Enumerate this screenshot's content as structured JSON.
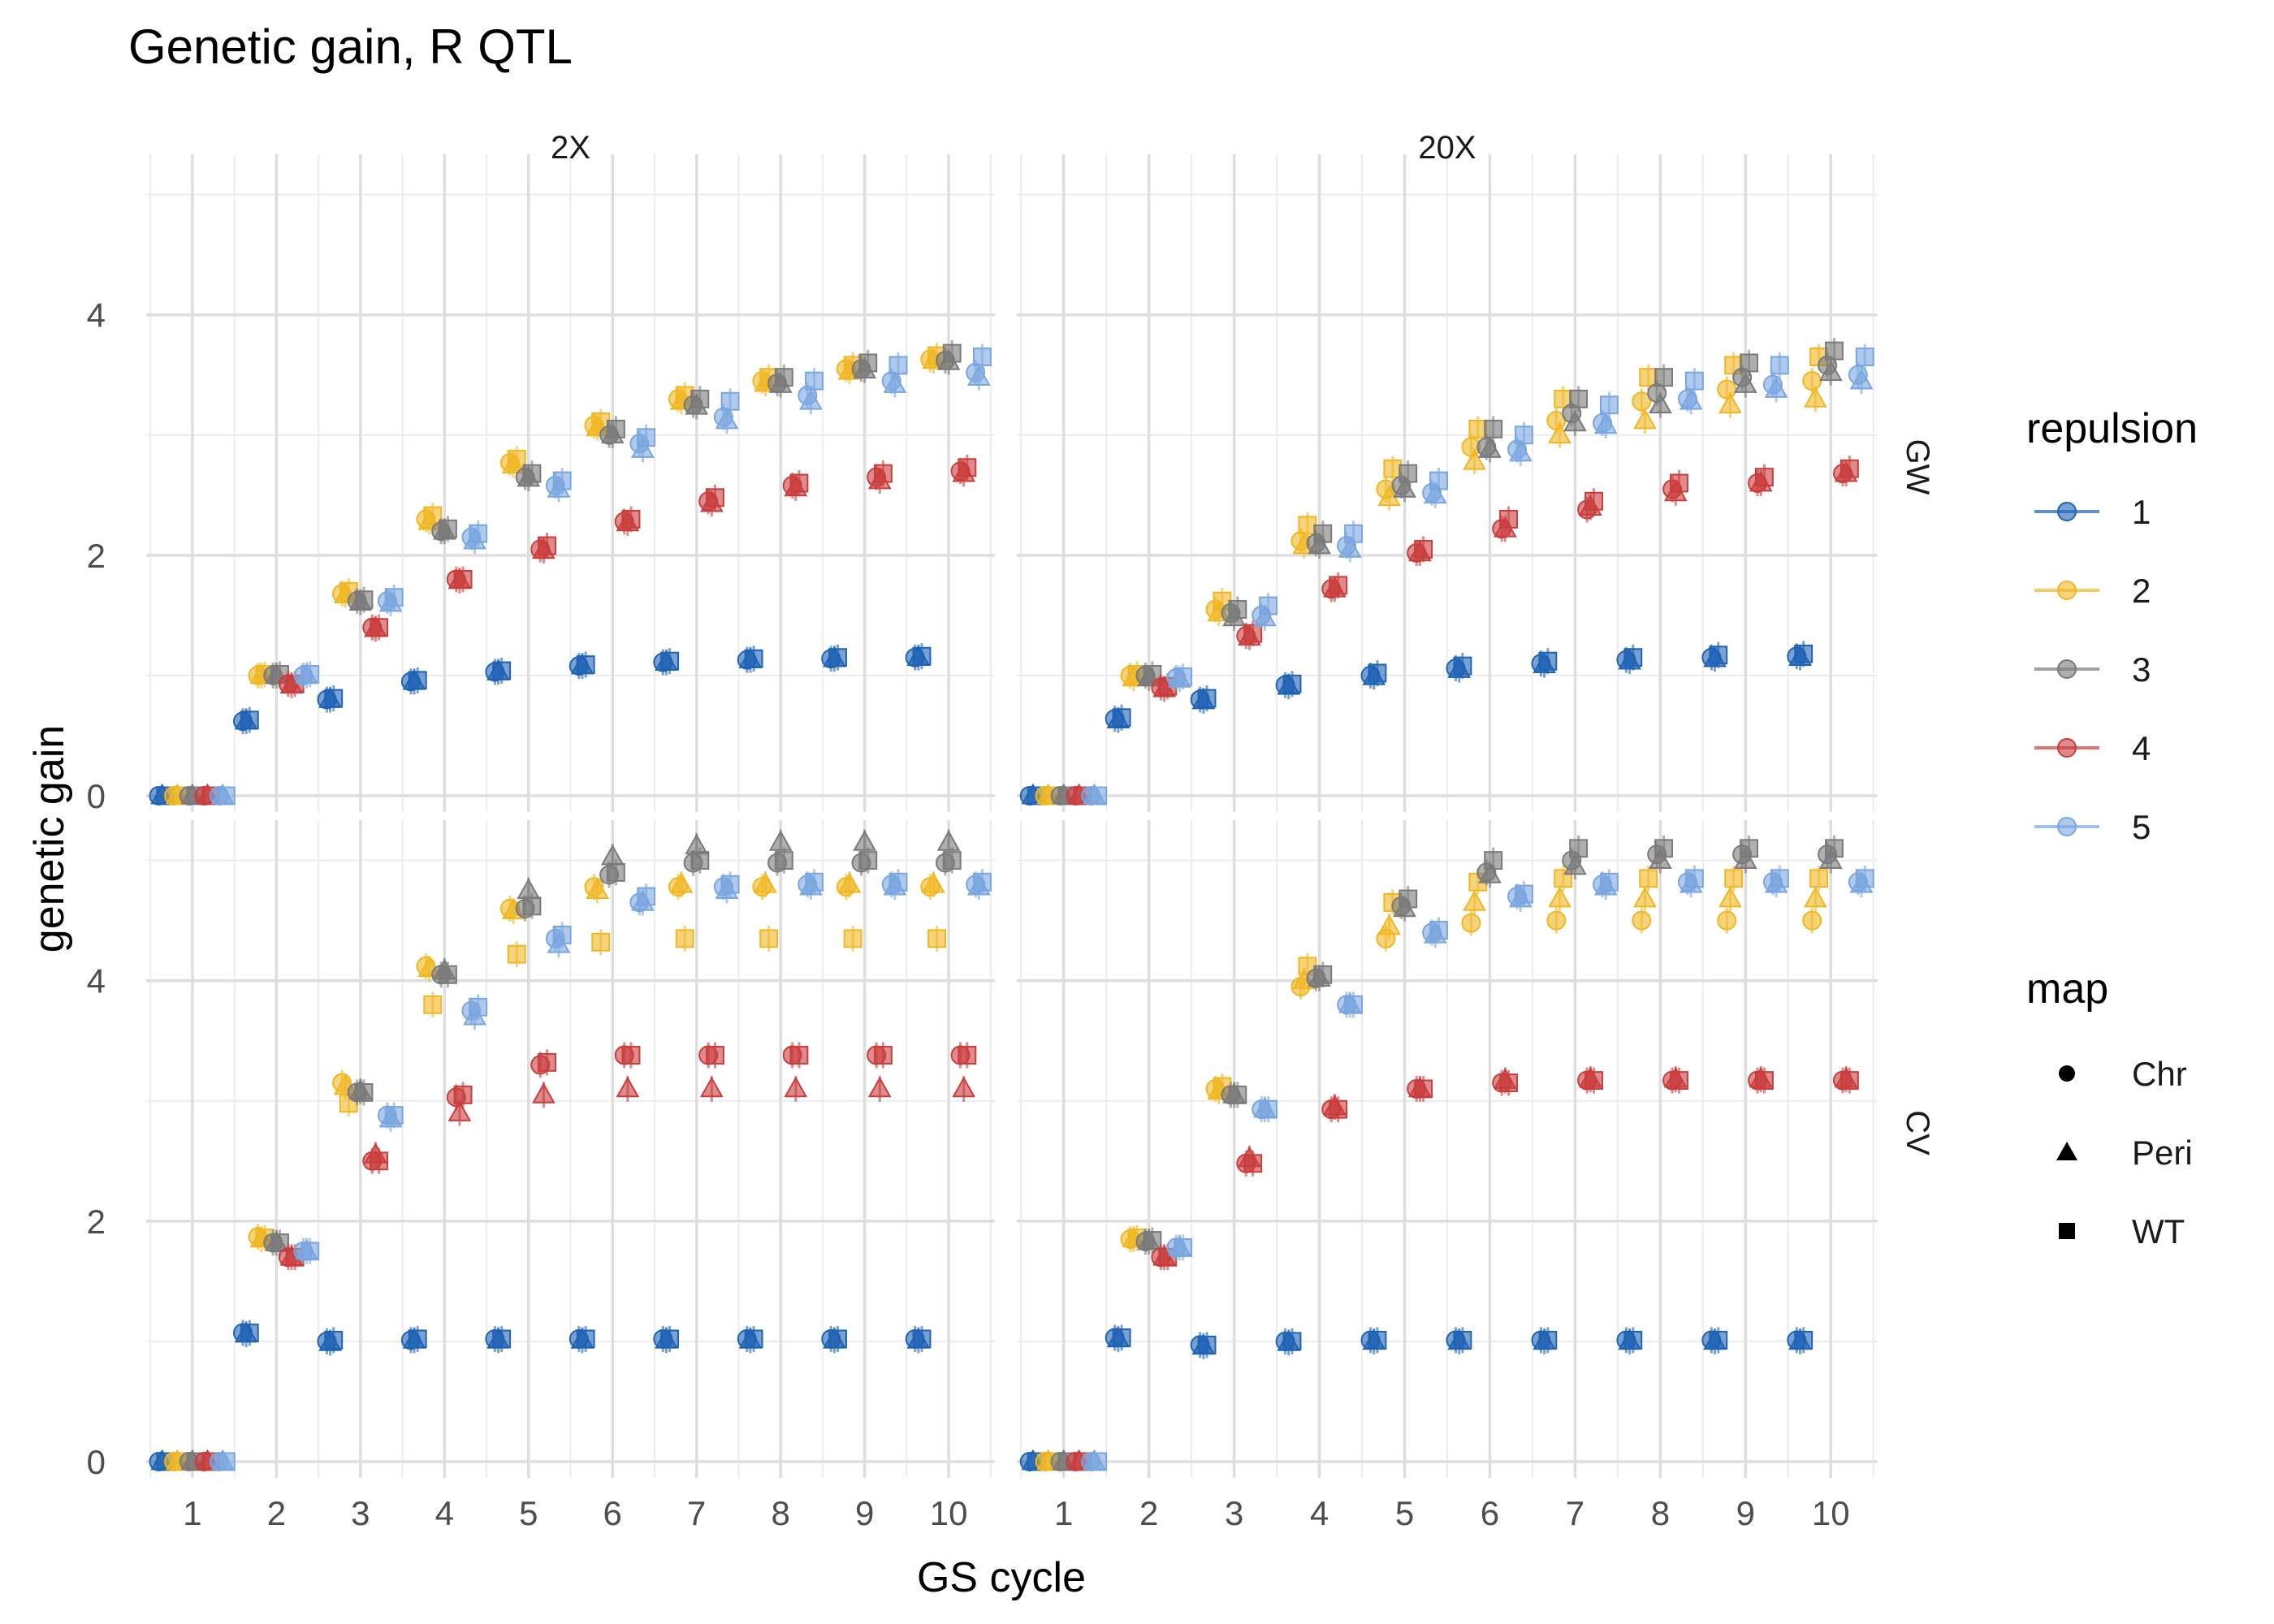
{
  "chart_data": {
    "type": "scatter",
    "title": "Genetic gain, R QTL",
    "xlabel": "GS cycle",
    "ylabel": "genetic gain",
    "x_ticks": [
      1,
      2,
      3,
      4,
      5,
      6,
      7,
      8,
      9,
      10
    ],
    "y_ticks": [
      0,
      2,
      4
    ],
    "ylim": [
      0,
      5.2
    ],
    "xlim": [
      0.45,
      10.55
    ],
    "grid": true,
    "facet_columns": [
      "2X",
      "20X"
    ],
    "facet_rows": [
      "GW",
      "CV"
    ],
    "legend": {
      "position": "right",
      "repulsion_title": "repulsion",
      "repulsion": [
        {
          "label": "1",
          "color": "#1f63b4"
        },
        {
          "label": "2",
          "color": "#f0b723"
        },
        {
          "label": "3",
          "color": "#7a7a7a"
        },
        {
          "label": "4",
          "color": "#c93d3d"
        },
        {
          "label": "5",
          "color": "#7aa6e0"
        }
      ],
      "map_title": "map",
      "map": [
        {
          "label": "Chr",
          "shape": "circle"
        },
        {
          "label": "Peri",
          "shape": "triangle"
        },
        {
          "label": "WT",
          "shape": "square"
        }
      ]
    },
    "panels": [
      {
        "col": "2X",
        "row": "GW",
        "series": [
          {
            "repulsion": "1",
            "Chr": [
              0,
              0.62,
              0.8,
              0.95,
              1.03,
              1.08,
              1.11,
              1.13,
              1.14,
              1.15
            ],
            "Peri": [
              0,
              0.62,
              0.8,
              0.95,
              1.03,
              1.08,
              1.11,
              1.13,
              1.14,
              1.15
            ],
            "WT": [
              0,
              0.63,
              0.81,
              0.96,
              1.04,
              1.09,
              1.12,
              1.14,
              1.15,
              1.16
            ]
          },
          {
            "repulsion": "2",
            "Chr": [
              0,
              1.0,
              1.68,
              2.3,
              2.77,
              3.08,
              3.3,
              3.45,
              3.55,
              3.63
            ],
            "Peri": [
              0,
              1.0,
              1.67,
              2.28,
              2.75,
              3.06,
              3.28,
              3.43,
              3.53,
              3.62
            ],
            "WT": [
              0,
              1.01,
              1.7,
              2.33,
              2.8,
              3.11,
              3.33,
              3.48,
              3.58,
              3.66
            ]
          },
          {
            "repulsion": "3",
            "Chr": [
              0,
              1.0,
              1.62,
              2.2,
              2.65,
              3.0,
              3.25,
              3.43,
              3.55,
              3.62
            ],
            "Peri": [
              0,
              1.0,
              1.61,
              2.2,
              2.64,
              3.0,
              3.24,
              3.42,
              3.54,
              3.61
            ],
            "WT": [
              0,
              1.01,
              1.63,
              2.22,
              2.68,
              3.05,
              3.3,
              3.48,
              3.6,
              3.68
            ]
          },
          {
            "repulsion": "4",
            "Chr": [
              0,
              0.93,
              1.4,
              1.8,
              2.05,
              2.28,
              2.45,
              2.58,
              2.65,
              2.7
            ],
            "Peri": [
              0,
              0.92,
              1.39,
              1.79,
              2.04,
              2.27,
              2.43,
              2.56,
              2.62,
              2.68
            ],
            "WT": [
              0,
              0.93,
              1.4,
              1.8,
              2.08,
              2.3,
              2.48,
              2.6,
              2.68,
              2.73
            ]
          },
          {
            "repulsion": "5",
            "Chr": [
              0,
              1.0,
              1.62,
              2.15,
              2.58,
              2.93,
              3.15,
              3.33,
              3.45,
              3.52
            ],
            "Peri": [
              0,
              1.0,
              1.6,
              2.12,
              2.55,
              2.88,
              3.12,
              3.28,
              3.42,
              3.48
            ],
            "WT": [
              0,
              1.01,
              1.65,
              2.18,
              2.62,
              2.98,
              3.28,
              3.45,
              3.58,
              3.65
            ]
          }
        ]
      },
      {
        "col": "20X",
        "row": "GW",
        "series": [
          {
            "repulsion": "1",
            "Chr": [
              0,
              0.64,
              0.8,
              0.92,
              1.0,
              1.06,
              1.1,
              1.13,
              1.15,
              1.16
            ],
            "Peri": [
              0,
              0.63,
              0.79,
              0.91,
              0.99,
              1.05,
              1.09,
              1.12,
              1.14,
              1.15
            ],
            "WT": [
              0,
              0.65,
              0.81,
              0.93,
              1.02,
              1.08,
              1.12,
              1.15,
              1.17,
              1.18
            ]
          },
          {
            "repulsion": "2",
            "Chr": [
              0,
              1.0,
              1.55,
              2.12,
              2.55,
              2.9,
              3.12,
              3.28,
              3.38,
              3.45
            ],
            "Peri": [
              0,
              0.98,
              1.52,
              2.08,
              2.48,
              2.78,
              3.0,
              3.12,
              3.25,
              3.3
            ],
            "WT": [
              0,
              1.01,
              1.62,
              2.25,
              2.72,
              3.05,
              3.3,
              3.48,
              3.58,
              3.65
            ]
          },
          {
            "repulsion": "3",
            "Chr": [
              0,
              1.0,
              1.52,
              2.1,
              2.58,
              2.9,
              3.18,
              3.35,
              3.48,
              3.58
            ],
            "Peri": [
              0,
              0.98,
              1.48,
              2.08,
              2.55,
              2.88,
              3.1,
              3.25,
              3.42,
              3.52
            ],
            "WT": [
              0,
              1.01,
              1.55,
              2.18,
              2.68,
              3.05,
              3.3,
              3.48,
              3.6,
              3.7
            ]
          },
          {
            "repulsion": "4",
            "Chr": [
              0,
              0.9,
              1.33,
              1.72,
              2.02,
              2.22,
              2.38,
              2.55,
              2.6,
              2.68
            ],
            "Peri": [
              0,
              0.89,
              1.32,
              1.72,
              2.02,
              2.22,
              2.4,
              2.52,
              2.6,
              2.68
            ],
            "WT": [
              0,
              0.91,
              1.35,
              1.75,
              2.05,
              2.3,
              2.45,
              2.6,
              2.65,
              2.72
            ]
          },
          {
            "repulsion": "5",
            "Chr": [
              0,
              0.98,
              1.5,
              2.08,
              2.52,
              2.88,
              3.1,
              3.3,
              3.42,
              3.5
            ],
            "Peri": [
              0,
              0.97,
              1.48,
              2.05,
              2.5,
              2.85,
              3.08,
              3.28,
              3.38,
              3.45
            ],
            "WT": [
              0,
              0.99,
              1.58,
              2.18,
              2.62,
              3.0,
              3.25,
              3.45,
              3.58,
              3.65
            ]
          }
        ]
      },
      {
        "col": "2X",
        "row": "CV",
        "series": [
          {
            "repulsion": "1",
            "Chr": [
              0,
              1.07,
              1.0,
              1.01,
              1.02,
              1.02,
              1.02,
              1.02,
              1.02,
              1.02
            ],
            "Peri": [
              0,
              1.06,
              0.99,
              1.01,
              1.01,
              1.01,
              1.01,
              1.01,
              1.01,
              1.01
            ],
            "WT": [
              0,
              1.07,
              1.01,
              1.02,
              1.02,
              1.02,
              1.02,
              1.02,
              1.02,
              1.02
            ]
          },
          {
            "repulsion": "2",
            "Chr": [
              0,
              1.87,
              3.15,
              4.12,
              4.6,
              4.78,
              4.78,
              4.78,
              4.78,
              4.78
            ],
            "Peri": [
              0,
              1.85,
              3.12,
              4.1,
              4.58,
              4.75,
              4.8,
              4.8,
              4.8,
              4.8
            ],
            "WT": [
              0,
              1.86,
              2.98,
              3.8,
              4.22,
              4.32,
              4.35,
              4.35,
              4.35,
              4.35
            ]
          },
          {
            "repulsion": "3",
            "Chr": [
              0,
              1.82,
              3.07,
              4.05,
              4.6,
              4.88,
              4.98,
              4.98,
              4.98,
              4.98
            ],
            "Peri": [
              0,
              1.82,
              3.08,
              4.08,
              4.75,
              5.03,
              5.12,
              5.15,
              5.15,
              5.15
            ],
            "WT": [
              0,
              1.82,
              3.07,
              4.05,
              4.62,
              4.9,
              5.0,
              5.0,
              5.0,
              5.0
            ]
          },
          {
            "repulsion": "4",
            "Chr": [
              0,
              1.7,
              2.5,
              3.03,
              3.3,
              3.38,
              3.38,
              3.38,
              3.38,
              3.38
            ],
            "Peri": [
              0,
              1.7,
              2.55,
              2.9,
              3.05,
              3.1,
              3.1,
              3.1,
              3.1,
              3.1
            ],
            "WT": [
              0,
              1.7,
              2.5,
              3.05,
              3.32,
              3.38,
              3.38,
              3.38,
              3.38,
              3.38
            ]
          },
          {
            "repulsion": "5",
            "Chr": [
              0,
              1.75,
              2.88,
              3.75,
              4.35,
              4.65,
              4.78,
              4.8,
              4.8,
              4.8
            ],
            "Peri": [
              0,
              1.75,
              2.85,
              3.7,
              4.3,
              4.65,
              4.75,
              4.78,
              4.78,
              4.78
            ],
            "WT": [
              0,
              1.75,
              2.88,
              3.78,
              4.38,
              4.7,
              4.8,
              4.82,
              4.82,
              4.82
            ]
          }
        ]
      },
      {
        "col": "20X",
        "row": "CV",
        "series": [
          {
            "repulsion": "1",
            "Chr": [
              0,
              1.03,
              0.97,
              1.0,
              1.01,
              1.01,
              1.01,
              1.01,
              1.01,
              1.01
            ],
            "Peri": [
              0,
              1.02,
              0.96,
              0.99,
              1.0,
              1.0,
              1.0,
              1.0,
              1.0,
              1.0
            ],
            "WT": [
              0,
              1.03,
              0.97,
              1.0,
              1.01,
              1.01,
              1.01,
              1.01,
              1.01,
              1.01
            ]
          },
          {
            "repulsion": "2",
            "Chr": [
              0,
              1.85,
              3.1,
              3.95,
              4.35,
              4.48,
              4.5,
              4.5,
              4.5,
              4.5
            ],
            "Peri": [
              0,
              1.85,
              3.08,
              4.0,
              4.45,
              4.65,
              4.68,
              4.68,
              4.68,
              4.68
            ],
            "WT": [
              0,
              1.86,
              3.12,
              4.12,
              4.65,
              4.82,
              4.85,
              4.85,
              4.85,
              4.85
            ]
          },
          {
            "repulsion": "3",
            "Chr": [
              0,
              1.83,
              3.05,
              4.02,
              4.62,
              4.9,
              5.0,
              5.05,
              5.05,
              5.05
            ],
            "Peri": [
              0,
              1.83,
              3.05,
              4.02,
              4.6,
              4.88,
              4.95,
              5.0,
              5.0,
              5.0
            ],
            "WT": [
              0,
              1.84,
              3.05,
              4.05,
              4.68,
              5.0,
              5.1,
              5.1,
              5.1,
              5.1
            ]
          },
          {
            "repulsion": "4",
            "Chr": [
              0,
              1.7,
              2.48,
              2.93,
              3.1,
              3.15,
              3.17,
              3.17,
              3.17,
              3.17
            ],
            "Peri": [
              0,
              1.7,
              2.52,
              2.95,
              3.1,
              3.17,
              3.18,
              3.18,
              3.18,
              3.18
            ],
            "WT": [
              0,
              1.7,
              2.48,
              2.93,
              3.1,
              3.15,
              3.17,
              3.17,
              3.17,
              3.17
            ]
          },
          {
            "repulsion": "5",
            "Chr": [
              0,
              1.78,
              2.93,
              3.8,
              4.4,
              4.7,
              4.8,
              4.82,
              4.82,
              4.82
            ],
            "Peri": [
              0,
              1.78,
              2.93,
              3.8,
              4.38,
              4.68,
              4.78,
              4.8,
              4.8,
              4.8
            ],
            "WT": [
              0,
              1.78,
              2.93,
              3.8,
              4.42,
              4.72,
              4.82,
              4.85,
              4.85,
              4.85
            ]
          }
        ]
      }
    ]
  }
}
